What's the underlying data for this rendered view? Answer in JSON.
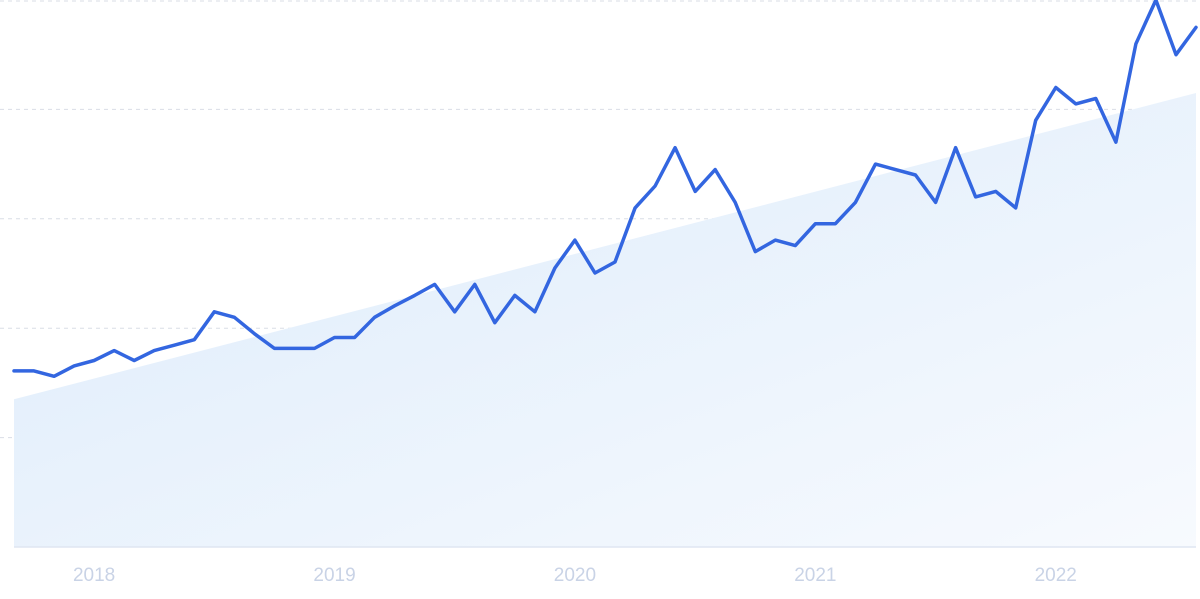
{
  "chart_data": {
    "type": "line",
    "title": "",
    "xlabel": "",
    "ylabel": "",
    "x_tick_labels": [
      "2018",
      "2019",
      "2020",
      "2021",
      "2022"
    ],
    "grid": true,
    "legend": "none",
    "colors": {
      "line": "#3366e0",
      "trend_fill_top": "#dcebfb",
      "trend_fill_bottom": "#f7fafe"
    },
    "x_range": [
      "2017-09",
      "2022-08"
    ],
    "ylim": [
      0,
      100
    ],
    "y_gridlines": [
      20,
      40,
      60,
      80,
      100
    ],
    "series": [
      {
        "x": [
          "2017-09",
          "2017-10",
          "2017-11",
          "2017-12",
          "2018-01",
          "2018-02",
          "2018-03",
          "2018-04",
          "2018-05",
          "2018-06",
          "2018-07",
          "2018-08",
          "2018-09",
          "2018-10",
          "2018-11",
          "2018-12",
          "2019-01",
          "2019-02",
          "2019-03",
          "2019-04",
          "2019-05",
          "2019-06",
          "2019-07",
          "2019-08",
          "2019-09",
          "2019-10",
          "2019-11",
          "2019-12",
          "2020-01",
          "2020-02",
          "2020-03",
          "2020-04",
          "2020-05",
          "2020-06",
          "2020-07",
          "2020-08",
          "2020-09",
          "2020-10",
          "2020-11",
          "2020-12",
          "2021-01",
          "2021-02",
          "2021-03",
          "2021-04",
          "2021-05",
          "2021-06",
          "2021-07",
          "2021-08",
          "2021-09",
          "2021-10",
          "2021-11",
          "2021-12",
          "2022-01",
          "2022-02",
          "2022-03",
          "2022-04",
          "2022-05",
          "2022-06",
          "2022-07",
          "2022-08"
        ],
        "values": [
          32.2,
          32.2,
          31.2,
          33.1,
          34.1,
          35.9,
          34.1,
          35.9,
          36.9,
          37.9,
          43.0,
          42.0,
          39.0,
          36.3,
          36.3,
          36.3,
          38.3,
          38.3,
          42.0,
          44.1,
          46.0,
          48.0,
          43.0,
          48.0,
          41.0,
          46.0,
          43.0,
          51.0,
          56.1,
          50.1,
          52.1,
          62.0,
          66.0,
          73.0,
          65.0,
          69.0,
          63.0,
          54.0,
          56.1,
          55.1,
          59.1,
          59.1,
          63.0,
          70.0,
          69.0,
          68.0,
          63.0,
          73.0,
          64.0,
          65.0,
          62.0,
          78.0,
          84.0,
          81.0,
          82.0,
          74.0,
          92.0,
          100.0,
          90.0,
          95.0
        ]
      }
    ],
    "trend_band": {
      "start_value": 27,
      "end_value": 83
    }
  }
}
